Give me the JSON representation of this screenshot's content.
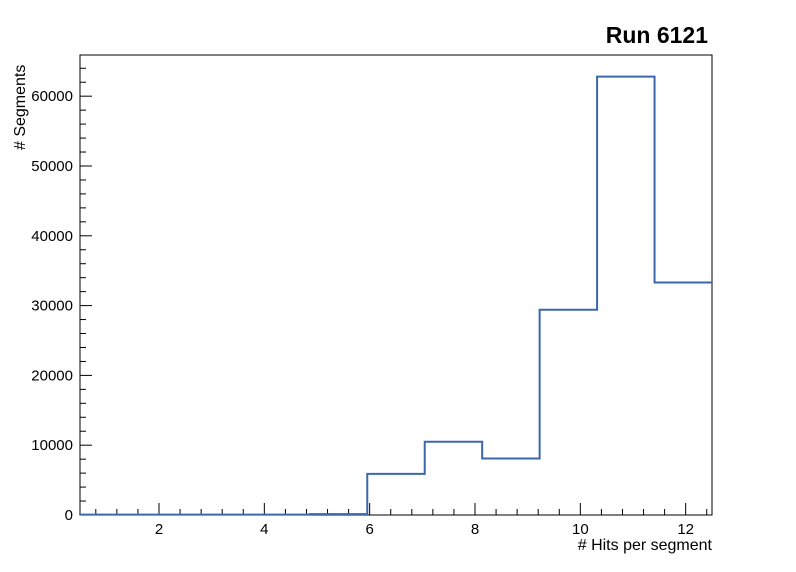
{
  "chart_data": {
    "type": "histogram-step",
    "title": "Run 6121",
    "xlabel": "# Hits per segment",
    "ylabel": "# Segments",
    "xlim": [
      0.5,
      12.5
    ],
    "ylim": [
      0,
      65900
    ],
    "bin_edges": [
      0.5,
      1.5909,
      2.6818,
      3.7727,
      4.8636,
      5.9545,
      7.0455,
      8.1364,
      9.2273,
      10.3182,
      11.4091,
      12.5
    ],
    "values": [
      60,
      60,
      60,
      60,
      120,
      5900,
      10500,
      8100,
      29400,
      62800,
      33300
    ],
    "x_major_ticks": [
      2,
      4,
      6,
      8,
      10,
      12
    ],
    "x_minor_step": 0.4,
    "y_major_ticks": [
      0,
      10000,
      20000,
      30000,
      40000,
      50000,
      60000
    ],
    "y_minor_step": 2000,
    "line_color": "#3a67ad",
    "axis_color": "#000000",
    "grid": false,
    "legend": null
  }
}
